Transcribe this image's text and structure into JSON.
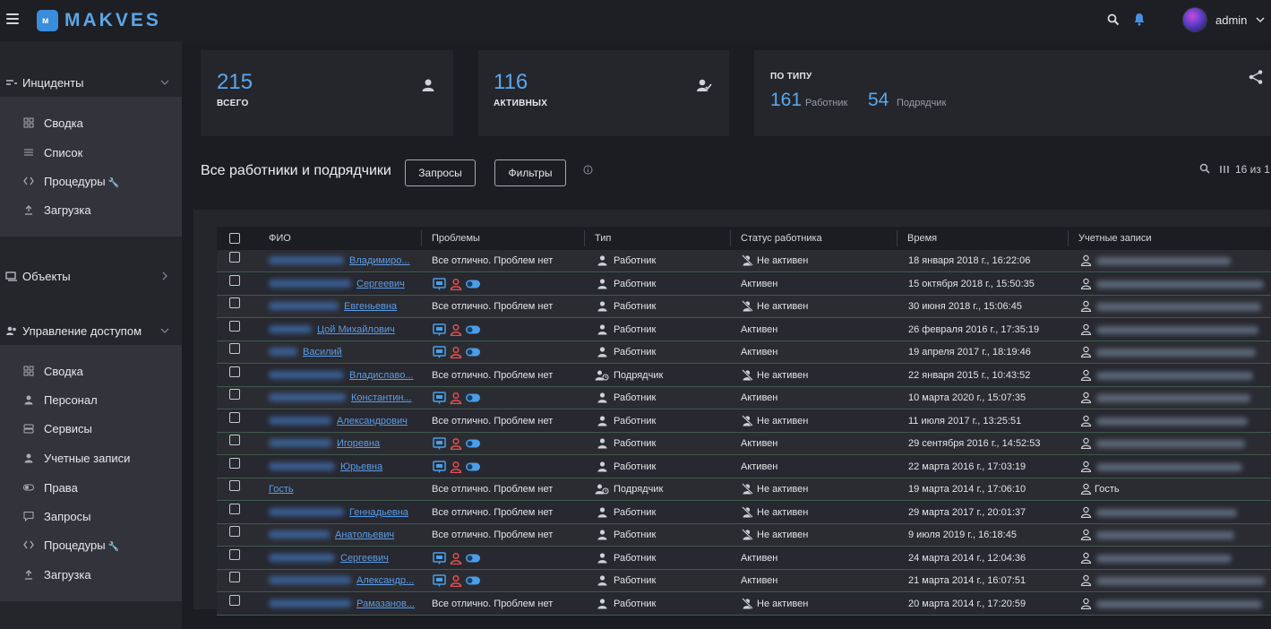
{
  "app": {
    "logo_text": "MAKVES",
    "user_name": "admin"
  },
  "colors": {
    "accent": "#5aa7ee",
    "link": "#5b9de8",
    "problem_red": "#e35050",
    "background": "#1c1d22",
    "panel": "#25262c"
  },
  "sidebar": {
    "incidents": {
      "label": "Инциденты",
      "items": [
        {
          "label": "Сводка",
          "icon": "grid-icon"
        },
        {
          "label": "Список",
          "icon": "list-icon"
        },
        {
          "label": "Процедуры",
          "icon": "code-icon",
          "badge": "🔧"
        },
        {
          "label": "Загрузка",
          "icon": "upload-icon"
        }
      ]
    },
    "objects": {
      "label": "Объекты"
    },
    "access": {
      "label": "Управление доступом",
      "items": [
        {
          "label": "Сводка",
          "icon": "grid-icon"
        },
        {
          "label": "Персонал",
          "icon": "person-icon"
        },
        {
          "label": "Сервисы",
          "icon": "server-icon"
        },
        {
          "label": "Учетные записи",
          "icon": "person-icon"
        },
        {
          "label": "Права",
          "icon": "toggle-icon"
        },
        {
          "label": "Запросы",
          "icon": "chat-icon"
        },
        {
          "label": "Процедуры",
          "icon": "code-icon",
          "badge": "🔧"
        },
        {
          "label": "Загрузка",
          "icon": "upload-icon"
        }
      ]
    }
  },
  "stats": {
    "total": {
      "value": "215",
      "caption": "ВСЕГО"
    },
    "active": {
      "value": "116",
      "caption": "АКТИВНЫХ"
    },
    "by_type": {
      "caption": "ПО ТИПУ",
      "worker_value": "161",
      "worker_label": "Работник",
      "contractor_value": "54",
      "contractor_label": "Подрядчик"
    }
  },
  "list": {
    "title": "Все работники и подрядчики",
    "requests_button": "Запросы",
    "filters_button": "Фильтры",
    "pager": "16 из 1"
  },
  "table": {
    "columns": [
      "ФИО",
      "Проблемы",
      "Тип",
      "Статус работника",
      "Время",
      "Учетные записи"
    ],
    "rows": [
      {
        "fio": "Владимиро...",
        "problem": "Все отлично. Проблем нет",
        "type": "Работник",
        "status": "Не активен",
        "time": "18 января 2018 г., 16:22:06",
        "account": ""
      },
      {
        "fio": "Сергеевич",
        "problem": "",
        "type": "Работник",
        "status": "Активен",
        "time": "15 октября 2018 г., 15:50:35",
        "account": ""
      },
      {
        "fio": "Евгеньевна",
        "problem": "Все отлично. Проблем нет",
        "type": "Работник",
        "status": "Не активен",
        "time": "30 июня 2018 г., 15:06:45",
        "account": ""
      },
      {
        "fio": "Цой Михайлович",
        "problem": "",
        "type": "Работник",
        "status": "Активен",
        "time": "26 февраля 2016 г., 17:35:19",
        "account": ""
      },
      {
        "fio": "Василий",
        "problem": "",
        "type": "Работник",
        "status": "Активен",
        "time": "19 апреля 2017 г., 18:19:46",
        "account": ""
      },
      {
        "fio": "Владиславо...",
        "problem": "Все отлично. Проблем нет",
        "type": "Подрядчик",
        "status": "Не активен",
        "time": "22 января 2015 г., 10:43:52",
        "account": ""
      },
      {
        "fio": "Константин...",
        "problem": "",
        "type": "Работник",
        "status": "Активен",
        "time": "10 марта 2020 г., 15:07:35",
        "account": ""
      },
      {
        "fio": "Александрович",
        "problem": "Все отлично. Проблем нет",
        "type": "Работник",
        "status": "Не активен",
        "time": "11 июля 2017 г., 13:25:51",
        "account": ""
      },
      {
        "fio": "Игоревна",
        "problem": "",
        "type": "Работник",
        "status": "Активен",
        "time": "29 сентября 2016 г., 14:52:53",
        "account": ""
      },
      {
        "fio": "Юрьевна",
        "problem": "",
        "type": "Работник",
        "status": "Активен",
        "time": "22 марта 2016 г., 17:03:19",
        "account": ""
      },
      {
        "fio": "Гость",
        "problem": "Все отлично. Проблем нет",
        "type": "Подрядчик",
        "status": "Не активен",
        "time": "19 марта 2014 г., 17:06:10",
        "account": "Гость"
      },
      {
        "fio": "Геннадьевна",
        "problem": "Все отлично. Проблем нет",
        "type": "Работник",
        "status": "Не активен",
        "time": "29 марта 2017 г., 20:01:37",
        "account": ""
      },
      {
        "fio": "Анатольевич",
        "problem": "Все отлично. Проблем нет",
        "type": "Работник",
        "status": "Не активен",
        "time": "9 июля 2019 г., 16:18:45",
        "account": ""
      },
      {
        "fio": "Сергеевич",
        "problem": "",
        "type": "Работник",
        "status": "Активен",
        "time": "24 марта 2014 г., 12:04:36",
        "account": ""
      },
      {
        "fio": "Александр...",
        "problem": "",
        "type": "Работник",
        "status": "Активен",
        "time": "21 марта 2014 г., 16:07:51",
        "account": ""
      },
      {
        "fio": "Рамазанов...",
        "problem": "Все отлично. Проблем нет",
        "type": "Работник",
        "status": "Не активен",
        "time": "20 марта 2014 г., 17:20:59",
        "account": ""
      }
    ]
  }
}
